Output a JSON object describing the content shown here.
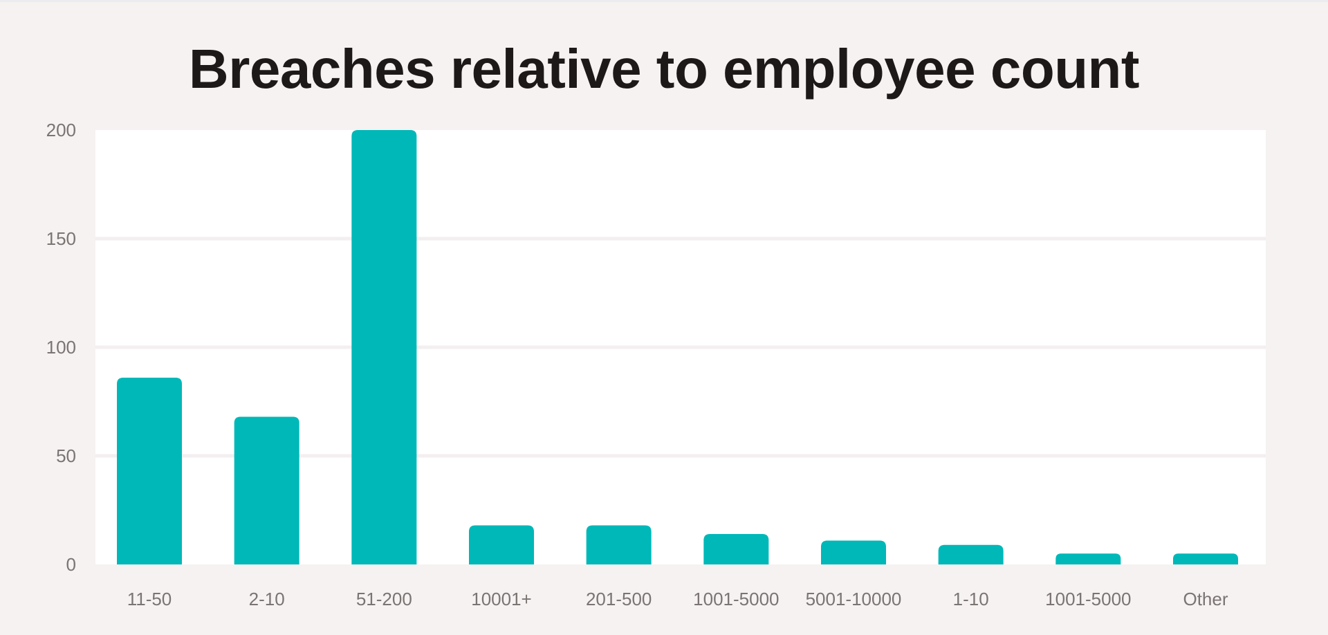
{
  "chart_data": {
    "type": "bar",
    "title": "Breaches relative to employee count",
    "xlabel": "",
    "ylabel": "",
    "categories": [
      "11-50",
      "2-10",
      "51-200",
      "10001+",
      "201-500",
      "1001-5000",
      "5001-10000",
      "1-10",
      "1001-5000",
      "Other"
    ],
    "values": [
      86,
      68,
      200,
      18,
      18,
      14,
      11,
      9,
      5,
      5
    ],
    "ylim": [
      0,
      200
    ],
    "yticks": [
      0,
      50,
      100,
      150,
      200
    ],
    "grid": true,
    "bar_color": "#00b8b8"
  }
}
